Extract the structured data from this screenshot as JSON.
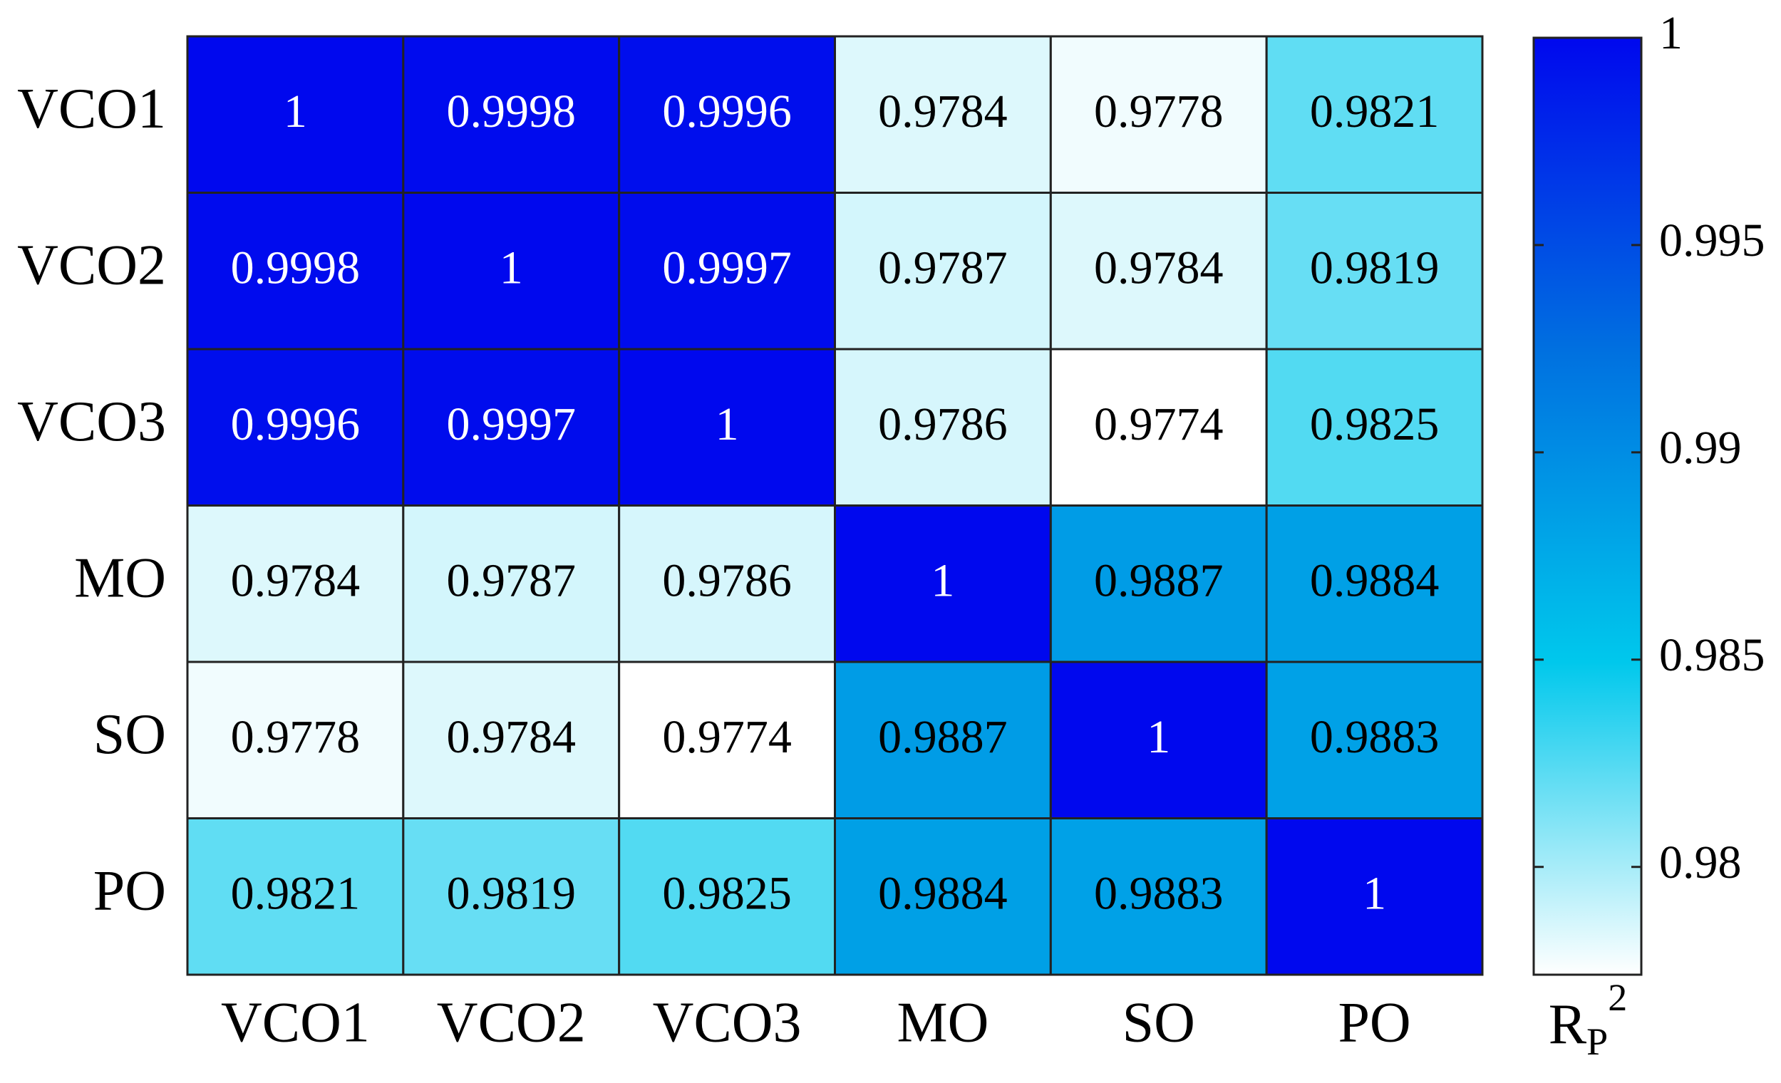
{
  "chart_data": {
    "type": "heatmap",
    "x_categories": [
      "VCO1",
      "VCO2",
      "VCO3",
      "MO",
      "SO",
      "PO"
    ],
    "y_categories": [
      "VCO1",
      "VCO2",
      "VCO3",
      "MO",
      "SO",
      "PO"
    ],
    "values": [
      [
        1,
        0.9998,
        0.9996,
        0.9784,
        0.9778,
        0.9821
      ],
      [
        0.9998,
        1,
        0.9997,
        0.9787,
        0.9784,
        0.9819
      ],
      [
        0.9996,
        0.9997,
        1,
        0.9786,
        0.9774,
        0.9825
      ],
      [
        0.9784,
        0.9787,
        0.9786,
        1,
        0.9887,
        0.9884
      ],
      [
        0.9778,
        0.9784,
        0.9774,
        0.9887,
        1,
        0.9883
      ],
      [
        0.9821,
        0.9819,
        0.9825,
        0.9884,
        0.9883,
        1
      ]
    ],
    "zlim": [
      0.9774,
      1
    ],
    "zticks": [
      0.98,
      0.985,
      0.99,
      0.995,
      1
    ],
    "colormap": [
      "#ffffff",
      "#00c8ec",
      "#0070e0",
      "#0008ee"
    ],
    "colorbar_label": [
      "R",
      "P",
      "2"
    ]
  }
}
